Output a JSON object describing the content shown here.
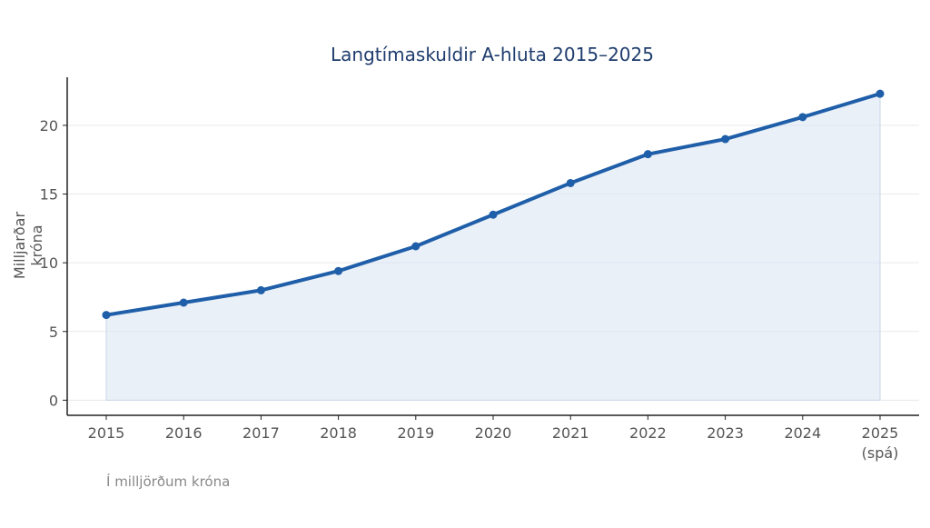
{
  "chart_data": {
    "type": "area",
    "title": "Langtímaskuldir A-hluta 2015–2025",
    "ylabel": "Milljarðar króna",
    "xlabel": "",
    "note": "Í milljörðum króna",
    "categories": [
      "2015",
      "2016",
      "2017",
      "2018",
      "2019",
      "2020",
      "2021",
      "2022",
      "2023",
      "2024",
      "2025"
    ],
    "category_sublabels": [
      "",
      "",
      "",
      "",
      "",
      "",
      "",
      "",
      "",
      "",
      "(spá)"
    ],
    "series": [
      {
        "name": "Langtímaskuldir",
        "values": [
          6.2,
          7.1,
          8.0,
          9.4,
          11.2,
          13.5,
          15.8,
          17.9,
          19.0,
          20.6,
          22.3
        ]
      }
    ],
    "ylim": [
      -1.1,
      23.5
    ],
    "yticks": [
      0,
      5,
      10,
      15,
      20
    ],
    "grid": true,
    "colors": {
      "line": "#1f5ea8",
      "fill": "#dce6f4",
      "grid": "#e6e9ee",
      "axis": "#222222",
      "tick_text": "#555555"
    }
  }
}
